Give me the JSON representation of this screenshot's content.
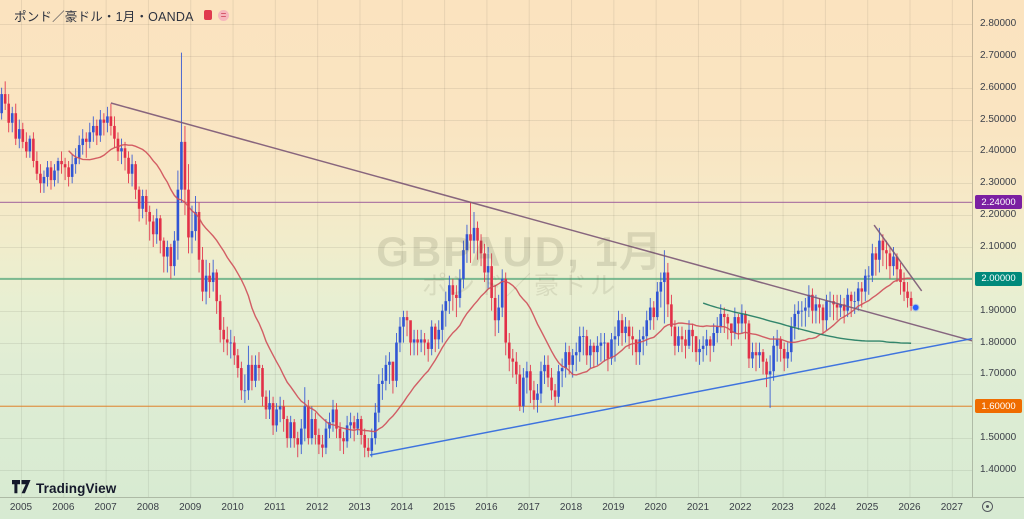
{
  "header": {
    "symbol_title": "ポンド／豪ドル・1月・OANDA",
    "icons": [
      {
        "name": "flag-icon",
        "color": "#e03a4e"
      },
      {
        "name": "market-status-icon",
        "color": "#f6b6bd"
      }
    ]
  },
  "watermark": {
    "line1": "GBPAUD, 1月",
    "line2": "ポンド／豪ドル"
  },
  "logo": {
    "text": "TradingView"
  },
  "price_axis": {
    "plain_ticks": [
      "2.80000",
      "2.70000",
      "2.60000",
      "2.50000",
      "2.40000",
      "2.30000",
      "2.20000",
      "2.10000",
      "1.90000",
      "1.80000",
      "1.70000",
      "1.50000",
      "1.40000"
    ],
    "badges": [
      {
        "label": "2.24000",
        "price": 2.24,
        "bg": "#7b1fa2"
      },
      {
        "label": "2.00000",
        "price": 2.0,
        "bg": "#00897b"
      },
      {
        "label": "1.60000",
        "price": 1.6,
        "bg": "#ef6c00"
      }
    ]
  },
  "time_axis": {
    "years": [
      "2005",
      "2006",
      "2007",
      "2008",
      "2009",
      "2010",
      "2011",
      "2012",
      "2013",
      "2014",
      "2015",
      "2016",
      "2017",
      "2018",
      "2019",
      "2020",
      "2021",
      "2022",
      "2023",
      "2024",
      "2025",
      "2026",
      "2027"
    ]
  },
  "chart_data": {
    "type": "candlestick",
    "title": "GBPAUD, 1月 (ポンド／豪ドル) monthly, OANDA",
    "ylim": [
      1.246,
      2.875
    ],
    "x_years_visible": [
      2004.5,
      2027.6
    ],
    "grid": true,
    "up_color": "#3155d4",
    "down_color": "#e23048",
    "first_open": 2.52,
    "start_month": "2004-07",
    "note": "hlc = [high, low, close] per month; open = previous close",
    "hlc": [
      [
        2.6,
        2.5,
        2.58
      ],
      [
        2.62,
        2.53,
        2.55
      ],
      [
        2.58,
        2.46,
        2.49
      ],
      [
        2.54,
        2.46,
        2.52
      ],
      [
        2.55,
        2.42,
        2.44
      ],
      [
        2.5,
        2.41,
        2.47
      ],
      [
        2.49,
        2.41,
        2.43
      ],
      [
        2.46,
        2.38,
        2.4
      ],
      [
        2.45,
        2.38,
        2.44
      ],
      [
        2.46,
        2.35,
        2.37
      ],
      [
        2.4,
        2.31,
        2.33
      ],
      [
        2.36,
        2.27,
        2.3
      ],
      [
        2.34,
        2.27,
        2.32
      ],
      [
        2.37,
        2.29,
        2.35
      ],
      [
        2.37,
        2.28,
        2.31
      ],
      [
        2.36,
        2.29,
        2.34
      ],
      [
        2.38,
        2.3,
        2.37
      ],
      [
        2.4,
        2.33,
        2.36
      ],
      [
        2.38,
        2.31,
        2.35
      ],
      [
        2.37,
        2.29,
        2.32
      ],
      [
        2.39,
        2.3,
        2.36
      ],
      [
        2.41,
        2.33,
        2.38
      ],
      [
        2.45,
        2.36,
        2.42
      ],
      [
        2.47,
        2.39,
        2.44
      ],
      [
        2.46,
        2.38,
        2.43
      ],
      [
        2.49,
        2.41,
        2.46
      ],
      [
        2.51,
        2.43,
        2.48
      ],
      [
        2.5,
        2.42,
        2.45
      ],
      [
        2.53,
        2.43,
        2.5
      ],
      [
        2.52,
        2.45,
        2.49
      ],
      [
        2.54,
        2.46,
        2.51
      ],
      [
        2.55,
        2.45,
        2.48
      ],
      [
        2.51,
        2.41,
        2.44
      ],
      [
        2.46,
        2.37,
        2.4
      ],
      [
        2.44,
        2.36,
        2.41
      ],
      [
        2.43,
        2.34,
        2.38
      ],
      [
        2.4,
        2.3,
        2.33
      ],
      [
        2.39,
        2.29,
        2.36
      ],
      [
        2.37,
        2.25,
        2.28
      ],
      [
        2.29,
        2.18,
        2.22
      ],
      [
        2.28,
        2.19,
        2.26
      ],
      [
        2.28,
        2.17,
        2.21
      ],
      [
        2.23,
        2.12,
        2.18
      ],
      [
        2.2,
        2.1,
        2.14
      ],
      [
        2.22,
        2.11,
        2.19
      ],
      [
        2.2,
        2.08,
        2.12
      ],
      [
        2.13,
        2.02,
        2.07
      ],
      [
        2.12,
        2.02,
        2.1
      ],
      [
        2.11,
        2.0,
        2.04
      ],
      [
        2.15,
        2.01,
        2.12
      ],
      [
        2.34,
        2.06,
        2.28
      ],
      [
        2.71,
        2.24,
        2.43
      ],
      [
        2.48,
        2.2,
        2.28
      ],
      [
        2.36,
        2.08,
        2.13
      ],
      [
        2.23,
        2.08,
        2.15
      ],
      [
        2.26,
        2.12,
        2.21
      ],
      [
        2.24,
        2.02,
        2.06
      ],
      [
        2.1,
        1.93,
        1.96
      ],
      [
        2.06,
        1.92,
        2.01
      ],
      [
        2.05,
        1.94,
        1.99
      ],
      [
        2.06,
        1.96,
        2.02
      ],
      [
        2.03,
        1.89,
        1.93
      ],
      [
        1.95,
        1.8,
        1.84
      ],
      [
        1.88,
        1.77,
        1.81
      ],
      [
        1.85,
        1.76,
        1.8
      ],
      [
        1.84,
        1.75,
        1.8
      ],
      [
        1.82,
        1.73,
        1.76
      ],
      [
        1.78,
        1.69,
        1.72
      ],
      [
        1.74,
        1.62,
        1.65
      ],
      [
        1.7,
        1.61,
        1.65
      ],
      [
        1.79,
        1.62,
        1.73
      ],
      [
        1.76,
        1.65,
        1.68
      ],
      [
        1.76,
        1.66,
        1.73
      ],
      [
        1.77,
        1.68,
        1.72
      ],
      [
        1.73,
        1.6,
        1.63
      ],
      [
        1.65,
        1.56,
        1.59
      ],
      [
        1.65,
        1.56,
        1.61
      ],
      [
        1.63,
        1.51,
        1.54
      ],
      [
        1.61,
        1.52,
        1.59
      ],
      [
        1.63,
        1.55,
        1.6
      ],
      [
        1.62,
        1.52,
        1.56
      ],
      [
        1.57,
        1.47,
        1.5
      ],
      [
        1.57,
        1.47,
        1.55
      ],
      [
        1.56,
        1.47,
        1.5
      ],
      [
        1.52,
        1.44,
        1.48
      ],
      [
        1.56,
        1.45,
        1.53
      ],
      [
        1.66,
        1.49,
        1.6
      ],
      [
        1.62,
        1.48,
        1.5
      ],
      [
        1.6,
        1.48,
        1.56
      ],
      [
        1.58,
        1.48,
        1.51
      ],
      [
        1.53,
        1.45,
        1.48
      ],
      [
        1.51,
        1.44,
        1.47
      ],
      [
        1.56,
        1.45,
        1.53
      ],
      [
        1.58,
        1.5,
        1.55
      ],
      [
        1.62,
        1.52,
        1.59
      ],
      [
        1.61,
        1.5,
        1.53
      ],
      [
        1.55,
        1.46,
        1.5
      ],
      [
        1.52,
        1.45,
        1.49
      ],
      [
        1.57,
        1.47,
        1.54
      ],
      [
        1.58,
        1.5,
        1.55
      ],
      [
        1.57,
        1.49,
        1.53
      ],
      [
        1.58,
        1.51,
        1.56
      ],
      [
        1.57,
        1.48,
        1.51
      ],
      [
        1.53,
        1.44,
        1.47
      ],
      [
        1.5,
        1.44,
        1.46
      ],
      [
        1.53,
        1.44,
        1.5
      ],
      [
        1.61,
        1.48,
        1.58
      ],
      [
        1.7,
        1.55,
        1.67
      ],
      [
        1.72,
        1.62,
        1.68
      ],
      [
        1.76,
        1.65,
        1.73
      ],
      [
        1.77,
        1.67,
        1.74
      ],
      [
        1.74,
        1.64,
        1.68
      ],
      [
        1.83,
        1.66,
        1.8
      ],
      [
        1.88,
        1.77,
        1.85
      ],
      [
        1.9,
        1.8,
        1.88
      ],
      [
        1.9,
        1.82,
        1.87
      ],
      [
        1.85,
        1.76,
        1.8
      ],
      [
        1.84,
        1.76,
        1.81
      ],
      [
        1.84,
        1.76,
        1.8
      ],
      [
        1.84,
        1.77,
        1.81
      ],
      [
        1.83,
        1.76,
        1.8
      ],
      [
        1.81,
        1.74,
        1.78
      ],
      [
        1.87,
        1.76,
        1.85
      ],
      [
        1.86,
        1.77,
        1.81
      ],
      [
        1.87,
        1.78,
        1.84
      ],
      [
        1.92,
        1.8,
        1.9
      ],
      [
        1.96,
        1.85,
        1.93
      ],
      [
        2.01,
        1.89,
        1.98
      ],
      [
        2.0,
        1.9,
        1.95
      ],
      [
        1.98,
        1.88,
        1.94
      ],
      [
        2.03,
        1.91,
        2.0
      ],
      [
        2.12,
        1.97,
        2.09
      ],
      [
        2.17,
        2.05,
        2.14
      ],
      [
        2.24,
        2.05,
        2.12
      ],
      [
        2.21,
        2.08,
        2.16
      ],
      [
        2.18,
        2.06,
        2.12
      ],
      [
        2.14,
        2.04,
        2.08
      ],
      [
        2.11,
        1.99,
        2.02
      ],
      [
        2.1,
        1.97,
        2.04
      ],
      [
        2.08,
        1.9,
        1.94
      ],
      [
        1.98,
        1.82,
        1.87
      ],
      [
        1.95,
        1.83,
        1.91
      ],
      [
        2.03,
        1.88,
        2.0
      ],
      [
        2.02,
        1.76,
        1.8
      ],
      [
        1.83,
        1.71,
        1.75
      ],
      [
        1.78,
        1.69,
        1.74
      ],
      [
        1.77,
        1.67,
        1.7
      ],
      [
        1.73,
        1.585,
        1.6
      ],
      [
        1.72,
        1.58,
        1.69
      ],
      [
        1.74,
        1.64,
        1.71
      ],
      [
        1.73,
        1.61,
        1.65
      ],
      [
        1.68,
        1.59,
        1.62
      ],
      [
        1.67,
        1.58,
        1.64
      ],
      [
        1.74,
        1.61,
        1.71
      ],
      [
        1.76,
        1.67,
        1.73
      ],
      [
        1.76,
        1.66,
        1.69
      ],
      [
        1.72,
        1.62,
        1.65
      ],
      [
        1.67,
        1.6,
        1.63
      ],
      [
        1.73,
        1.61,
        1.71
      ],
      [
        1.75,
        1.66,
        1.72
      ],
      [
        1.8,
        1.69,
        1.77
      ],
      [
        1.79,
        1.7,
        1.73
      ],
      [
        1.78,
        1.69,
        1.76
      ],
      [
        1.8,
        1.71,
        1.77
      ],
      [
        1.85,
        1.74,
        1.82
      ],
      [
        1.85,
        1.76,
        1.82
      ],
      [
        1.84,
        1.73,
        1.76
      ],
      [
        1.81,
        1.72,
        1.79
      ],
      [
        1.8,
        1.72,
        1.77
      ],
      [
        1.82,
        1.73,
        1.79
      ],
      [
        1.83,
        1.74,
        1.8
      ],
      [
        1.83,
        1.74,
        1.8
      ],
      [
        1.8,
        1.71,
        1.75
      ],
      [
        1.83,
        1.73,
        1.81
      ],
      [
        1.85,
        1.74,
        1.82
      ],
      [
        1.9,
        1.79,
        1.87
      ],
      [
        1.89,
        1.79,
        1.83
      ],
      [
        1.88,
        1.8,
        1.85
      ],
      [
        1.87,
        1.78,
        1.82
      ],
      [
        1.85,
        1.76,
        1.81
      ],
      [
        1.8,
        1.73,
        1.77
      ],
      [
        1.84,
        1.73,
        1.81
      ],
      [
        1.85,
        1.76,
        1.82
      ],
      [
        1.9,
        1.79,
        1.87
      ],
      [
        1.94,
        1.84,
        1.91
      ],
      [
        1.93,
        1.84,
        1.88
      ],
      [
        1.99,
        1.87,
        1.96
      ],
      [
        2.02,
        1.91,
        1.99
      ],
      [
        2.09,
        1.86,
        2.02
      ],
      [
        2.05,
        1.88,
        1.92
      ],
      [
        1.95,
        1.82,
        1.85
      ],
      [
        1.87,
        1.76,
        1.79
      ],
      [
        1.85,
        1.77,
        1.82
      ],
      [
        1.85,
        1.77,
        1.81
      ],
      [
        1.84,
        1.75,
        1.79
      ],
      [
        1.87,
        1.78,
        1.84
      ],
      [
        1.86,
        1.77,
        1.82
      ],
      [
        1.82,
        1.74,
        1.77
      ],
      [
        1.81,
        1.73,
        1.78
      ],
      [
        1.82,
        1.74,
        1.79
      ],
      [
        1.84,
        1.76,
        1.81
      ],
      [
        1.82,
        1.74,
        1.79
      ],
      [
        1.86,
        1.77,
        1.83
      ],
      [
        1.88,
        1.8,
        1.85
      ],
      [
        1.92,
        1.83,
        1.89
      ],
      [
        1.91,
        1.83,
        1.88
      ],
      [
        1.89,
        1.81,
        1.86
      ],
      [
        1.86,
        1.79,
        1.83
      ],
      [
        1.91,
        1.81,
        1.88
      ],
      [
        1.89,
        1.81,
        1.86
      ],
      [
        1.92,
        1.83,
        1.89
      ],
      [
        1.9,
        1.81,
        1.86
      ],
      [
        1.87,
        1.72,
        1.75
      ],
      [
        1.8,
        1.72,
        1.77
      ],
      [
        1.8,
        1.71,
        1.76
      ],
      [
        1.8,
        1.72,
        1.77
      ],
      [
        1.78,
        1.7,
        1.74
      ],
      [
        1.75,
        1.66,
        1.7
      ],
      [
        1.76,
        1.595,
        1.71
      ],
      [
        1.82,
        1.68,
        1.79
      ],
      [
        1.84,
        1.74,
        1.81
      ],
      [
        1.82,
        1.74,
        1.78
      ],
      [
        1.8,
        1.71,
        1.75
      ],
      [
        1.8,
        1.72,
        1.77
      ],
      [
        1.88,
        1.74,
        1.85
      ],
      [
        1.92,
        1.81,
        1.89
      ],
      [
        1.93,
        1.84,
        1.9
      ],
      [
        1.93,
        1.85,
        1.9
      ],
      [
        1.94,
        1.85,
        1.91
      ],
      [
        1.98,
        1.88,
        1.95
      ],
      [
        1.97,
        1.86,
        1.9
      ],
      [
        1.95,
        1.86,
        1.92
      ],
      [
        1.94,
        1.86,
        1.91
      ],
      [
        1.92,
        1.83,
        1.87
      ],
      [
        1.95,
        1.84,
        1.93
      ],
      [
        1.96,
        1.88,
        1.93
      ],
      [
        1.95,
        1.87,
        1.92
      ],
      [
        1.95,
        1.87,
        1.91
      ],
      [
        1.95,
        1.88,
        1.92
      ],
      [
        1.94,
        1.86,
        1.9
      ],
      [
        1.97,
        1.88,
        1.95
      ],
      [
        1.96,
        1.88,
        1.93
      ],
      [
        1.96,
        1.89,
        1.93
      ],
      [
        1.99,
        1.9,
        1.97
      ],
      [
        1.99,
        1.91,
        1.96
      ],
      [
        2.03,
        1.93,
        2.01
      ],
      [
        2.04,
        1.95,
        2.01
      ],
      [
        2.11,
        1.99,
        2.08
      ],
      [
        2.1,
        2.01,
        2.06
      ],
      [
        2.16,
        2.02,
        2.12
      ],
      [
        2.14,
        2.04,
        2.09
      ],
      [
        2.12,
        2.03,
        2.08
      ],
      [
        2.1,
        2.0,
        2.04
      ],
      [
        2.1,
        2.01,
        2.07
      ],
      [
        2.08,
        1.99,
        2.03
      ],
      [
        2.05,
        1.95,
        1.99
      ],
      [
        2.02,
        1.93,
        1.96
      ],
      [
        1.99,
        1.91,
        1.94
      ],
      [
        1.96,
        1.9,
        1.915
      ]
    ],
    "indicators": [
      {
        "name": "ma-short",
        "type": "sma",
        "length": 20,
        "color": "#cf4e59"
      },
      {
        "name": "ma-long",
        "type": "sma",
        "length": 200,
        "color": "#1f7a60"
      }
    ],
    "levels": [
      {
        "price": 2.24,
        "color": "#a0619c",
        "width": 1.2,
        "label": "2.24000"
      },
      {
        "price": 2.0,
        "color": "#5fae82",
        "width": 2.0,
        "label": "2.00000"
      },
      {
        "price": 1.6,
        "color": "#e5862e",
        "width": 1.2,
        "label": "1.60000"
      }
    ],
    "trendlines": [
      {
        "name": "descending-trendline-2007-2026",
        "color": "#7c5876",
        "points_month_price": [
          25,
          2.552,
          269.5,
          1.805
        ]
      },
      {
        "name": "descending-trendline-2025",
        "color": "#7c5876",
        "points_month_price": [
          241.5,
          2.169,
          255,
          1.962
        ]
      },
      {
        "name": "ascending-trendline-2013-2026",
        "color": "#2e67e0",
        "points_month_price": [
          98.5,
          1.447,
          270,
          1.814
        ]
      }
    ],
    "last_price_marker": {
      "price": 1.91,
      "month": 253.3,
      "color": "#2962ff"
    }
  }
}
